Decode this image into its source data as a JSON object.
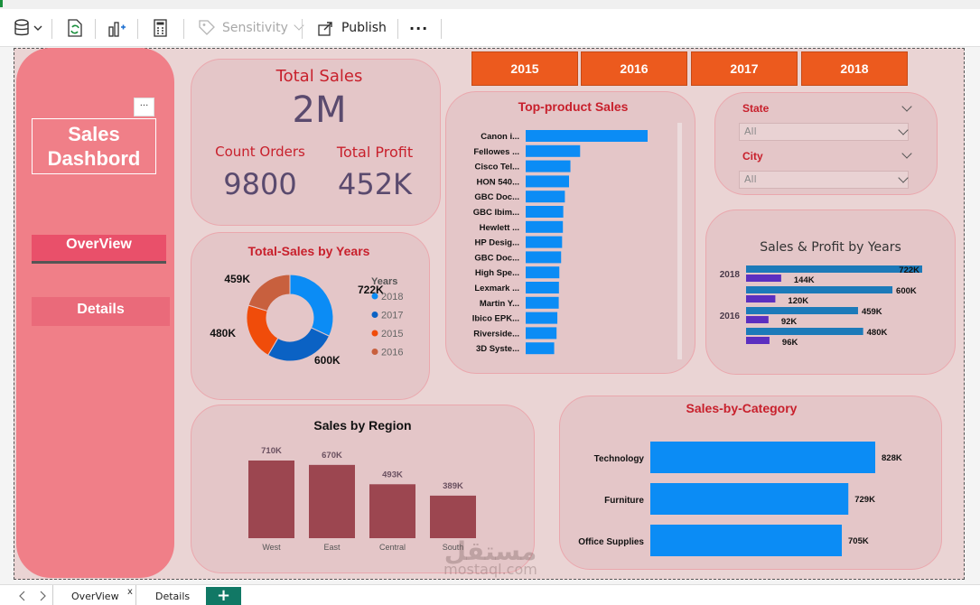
{
  "toolbar": {
    "sensitivity_label": "Sensitivity",
    "publish_label": "Publish",
    "more_label": "···"
  },
  "sidebar": {
    "title_line1": "Sales",
    "title_line2": "Dashbord",
    "more_label": "···",
    "nav": [
      {
        "label": "OverView"
      },
      {
        "label": "Details"
      }
    ]
  },
  "kpi": {
    "total_sales_label": "Total Sales",
    "total_sales_value": "2M",
    "count_orders_label": "Count Orders",
    "count_orders_value": "9800",
    "total_profit_label": "Total Profit",
    "total_profit_value": "452K"
  },
  "year_slicer": {
    "years": [
      "2015",
      "2016",
      "2017",
      "2018"
    ]
  },
  "filters": {
    "state_label": "State",
    "state_value": "All",
    "city_label": "City",
    "city_value": "All"
  },
  "tabs": [
    {
      "label": "OverView"
    },
    {
      "label": "Details"
    }
  ],
  "tab_close": "x",
  "add_page_label": "+",
  "watermark": {
    "line1": "مستقل",
    "line2": "mostaql.com"
  },
  "colors": {
    "accent_orange": "#ec5a1e",
    "bar_blue": "#0b8cf5",
    "region_bar": "#9c4650",
    "title_red": "#c8202c",
    "sidebar_pink": "#f07f88",
    "card_bg": "#e4c6c8"
  },
  "chart_data": [
    {
      "type": "pie",
      "title": "Total-Sales by Years",
      "legend_title": "Years",
      "legend_placement": "right",
      "categories": [
        "2018",
        "2017",
        "2015",
        "2016"
      ],
      "values": [
        722,
        600,
        480,
        459
      ],
      "labels": [
        "722K",
        "600K",
        "480K",
        "459K"
      ],
      "colors": [
        "#0b8cf5",
        "#0b62c4",
        "#f04c0a",
        "#c8603e"
      ]
    },
    {
      "type": "bar",
      "orientation": "horizontal",
      "title": "Top-product Sales",
      "categories": [
        "Canon i...",
        "Fellowes ...",
        "Cisco Tel...",
        "HON 540...",
        "GBC Doc...",
        "GBC Ibim...",
        "Hewlett ...",
        "HP Desig...",
        "GBC Doc...",
        "High Spe...",
        "Lexmark ...",
        "Martin Y...",
        "Ibico EPK...",
        "Riverside...",
        "3D Syste..."
      ],
      "values": [
        61.6,
        27.5,
        22.6,
        21.9,
        19.8,
        19.0,
        18.8,
        18.4,
        17.9,
        17.0,
        16.8,
        16.7,
        16.0,
        15.6,
        14.4
      ]
    },
    {
      "type": "bar",
      "orientation": "horizontal",
      "title": "Sales & Profit by Years",
      "category_labels": [
        "2018",
        "",
        "2016",
        ""
      ],
      "series": [
        {
          "values": [
            722,
            600,
            459,
            480
          ],
          "labels": [
            "722K",
            "600K",
            "459K",
            "480K"
          ],
          "color": "#1c7ab9"
        },
        {
          "values": [
            144,
            120,
            92,
            96
          ],
          "labels": [
            "144K",
            "120K",
            "92K",
            "96K"
          ],
          "color": "#5b2fc0"
        }
      ]
    },
    {
      "type": "bar",
      "title": "Sales by Region",
      "categories": [
        "West",
        "East",
        "Central",
        "South"
      ],
      "values": [
        710,
        670,
        493,
        389
      ],
      "labels": [
        "710K",
        "670K",
        "493K",
        "389K"
      ]
    },
    {
      "type": "bar",
      "orientation": "horizontal",
      "title": "Sales-by-Category",
      "categories": [
        "Technology",
        "Furniture",
        "Office Supplies"
      ],
      "values": [
        828,
        729,
        705
      ],
      "labels": [
        "828K",
        "729K",
        "705K"
      ]
    }
  ]
}
